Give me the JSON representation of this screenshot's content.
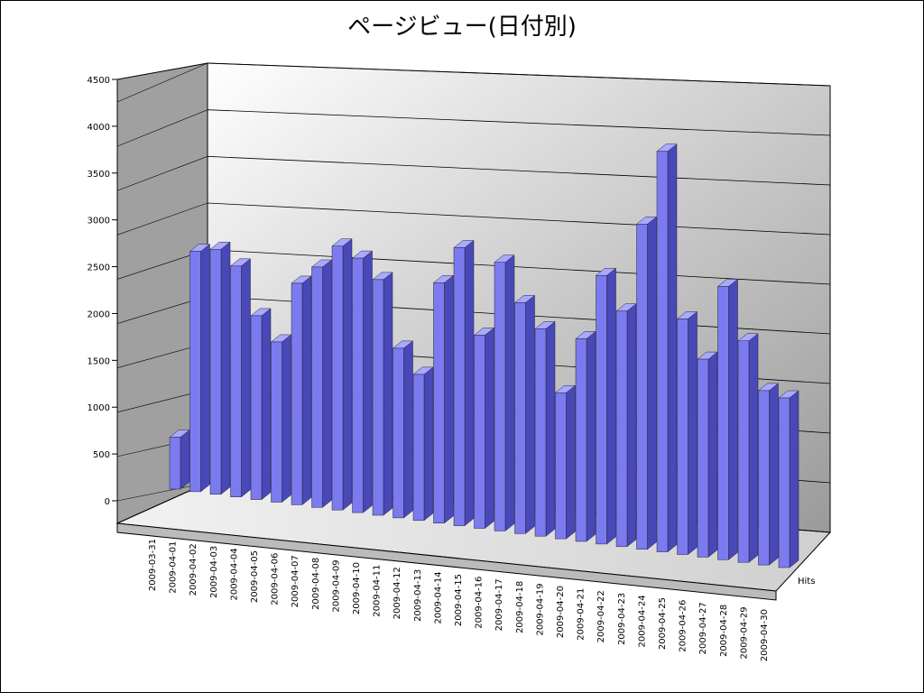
{
  "chart_data": {
    "type": "bar3d",
    "title": "ページビュー(日付別)",
    "categories": [
      "2009-03-31",
      "2009-04-01",
      "2009-04-02",
      "2009-04-03",
      "2009-04-04",
      "2009-04-05",
      "2009-04-06",
      "2009-04-07",
      "2009-04-08",
      "2009-04-09",
      "2009-04-10",
      "2009-04-11",
      "2009-04-12",
      "2009-04-13",
      "2009-04-14",
      "2009-04-15",
      "2009-04-16",
      "2009-04-17",
      "2009-04-18",
      "2009-04-19",
      "2009-04-20",
      "2009-04-21",
      "2009-04-22",
      "2009-04-23",
      "2009-04-24",
      "2009-04-25",
      "2009-04-26",
      "2009-04-27",
      "2009-04-28",
      "2009-04-29",
      "2009-04-30"
    ],
    "series": [
      {
        "name": "Hits",
        "color": "#7b7bef",
        "values": [
          550,
          2550,
          2600,
          2450,
          1950,
          1700,
          2350,
          2550,
          2800,
          2700,
          2500,
          1800,
          1550,
          2550,
          2950,
          2050,
          2850,
          2450,
          2200,
          1550,
          2150,
          2850,
          2500,
          3450,
          4250,
          2500,
          2100,
          2900,
          2350,
          1850,
          1800
        ]
      }
    ],
    "ylim": [
      0,
      4500
    ],
    "yticks": [
      0,
      500,
      1000,
      1500,
      2000,
      2500,
      3000,
      3500,
      4000,
      4500
    ],
    "grid": true
  }
}
